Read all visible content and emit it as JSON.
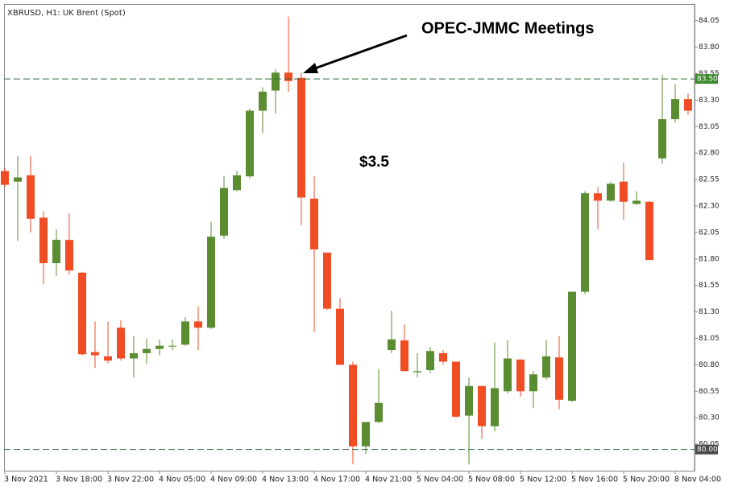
{
  "chart_data": {
    "type": "candlestick",
    "title": "XBRUSD, H1:  UK Brent (Spot)",
    "annotations": [
      "OPEC-JMMC Meetings",
      "$3.5"
    ],
    "categories": [
      "3 Nov 2021",
      null,
      null,
      null,
      "3 Nov 18:00",
      null,
      null,
      null,
      "3 Nov 22:00",
      null,
      null,
      null,
      "4 Nov 05:00",
      null,
      null,
      null,
      "4 Nov 09:00",
      null,
      null,
      null,
      "4 Nov 13:00",
      null,
      null,
      null,
      "4 Nov 17:00",
      null,
      null,
      null,
      "4 Nov 21:00",
      null,
      null,
      null,
      "5 Nov 04:00",
      null,
      null,
      null,
      "5 Nov 08:00",
      null,
      null,
      null,
      "5 Nov 12:00",
      null,
      null,
      null,
      "5 Nov 16:00",
      null,
      null,
      null,
      "5 Nov 20:00",
      null,
      null,
      null,
      "8 Nov 04:00",
      null
    ],
    "open": [
      82.63,
      82.53,
      82.59,
      82.19,
      81.76,
      81.98,
      81.67,
      80.92,
      80.88,
      81.15,
      80.86,
      80.91,
      80.95,
      80.98,
      80.99,
      81.21,
      81.15,
      82.02,
      82.45,
      82.58,
      83.2,
      83.39,
      83.56,
      83.51,
      82.37,
      81.86,
      81.33,
      80.8,
      80.03,
      80.26,
      80.94,
      81.03,
      80.73,
      80.75,
      80.91,
      80.83,
      80.32,
      80.6,
      80.22,
      80.55,
      80.85,
      80.55,
      80.68,
      80.87,
      80.46,
      81.49,
      82.42,
      82.35,
      82.53,
      82.32,
      82.34,
      82.75,
      83.12,
      83.31
    ],
    "high": [
      82.66,
      82.77,
      82.77,
      82.25,
      82.08,
      82.23,
      81.68,
      81.21,
      81.21,
      81.22,
      81.07,
      81.05,
      81.04,
      81.04,
      81.25,
      81.35,
      82.15,
      82.58,
      82.63,
      83.22,
      83.42,
      83.59,
      84.09,
      83.56,
      82.58,
      81.86,
      81.43,
      80.83,
      80.26,
      80.76,
      81.31,
      81.18,
      80.91,
      80.97,
      80.94,
      80.83,
      80.68,
      80.6,
      81.01,
      81.03,
      80.85,
      80.74,
      81.03,
      81.07,
      81.49,
      82.44,
      82.48,
      82.53,
      82.71,
      82.44,
      82.35,
      83.54,
      83.45,
      83.36
    ],
    "low": [
      82.48,
      81.97,
      82.05,
      81.56,
      81.64,
      81.65,
      80.89,
      80.77,
      80.81,
      80.84,
      80.68,
      80.81,
      80.89,
      80.94,
      80.98,
      80.94,
      81.14,
      81.99,
      82.44,
      82.56,
      82.99,
      83.17,
      83.38,
      82.12,
      81.11,
      81.32,
      80.8,
      79.86,
      79.96,
      80.25,
      80.91,
      80.74,
      80.68,
      80.72,
      80.8,
      80.3,
      79.86,
      80.1,
      80.17,
      80.53,
      80.5,
      80.39,
      80.66,
      80.38,
      80.45,
      81.47,
      82.08,
      82.34,
      82.17,
      82.31,
      81.79,
      82.7,
      83.09,
      83.16
    ],
    "close": [
      82.5,
      82.57,
      82.18,
      81.76,
      81.98,
      81.69,
      80.9,
      80.89,
      80.84,
      80.86,
      80.91,
      80.95,
      80.98,
      80.98,
      81.21,
      81.15,
      82.01,
      82.47,
      82.59,
      83.2,
      83.38,
      83.56,
      83.48,
      82.38,
      81.89,
      81.33,
      80.8,
      80.03,
      80.26,
      80.44,
      81.04,
      80.74,
      80.74,
      80.93,
      80.83,
      80.31,
      80.6,
      80.22,
      80.58,
      80.86,
      80.55,
      80.71,
      80.88,
      80.47,
      81.49,
      82.42,
      82.35,
      82.51,
      82.34,
      82.35,
      81.79,
      83.12,
      83.31,
      83.2
    ],
    "up_color": "#5a8c32",
    "down_color": "#f04d24",
    "ylim": [
      79.8,
      84.2
    ],
    "yticks": [
      80.05,
      {
        "value": 80.3,
        "label": "80.30"
      },
      80.55,
      {
        "value": 80.8,
        "label": "80.80"
      },
      81.05,
      {
        "value": 81.3,
        "label": "81.30"
      },
      81.55,
      {
        "value": 81.8,
        "label": "81.80"
      },
      82.05,
      {
        "value": 82.3,
        "label": "82.30"
      },
      82.55,
      {
        "value": 82.8,
        "label": "82.80"
      },
      83.05,
      {
        "value": 83.3,
        "label": "83.30"
      },
      83.55,
      {
        "value": 83.8,
        "label": "83.80"
      },
      84.05
    ],
    "levels": [
      {
        "value": 83.5,
        "label": "83.50",
        "color": "#3b8a2e"
      },
      {
        "value": 80,
        "label": "80.00",
        "color": "#4a4a4a"
      }
    ]
  }
}
